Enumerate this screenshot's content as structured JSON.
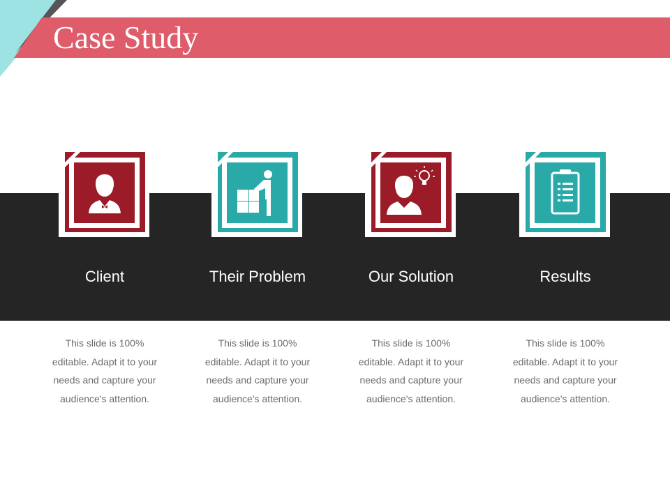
{
  "title": "Case Study",
  "colors": {
    "banner": "#df5c6a",
    "corner": "#9ee3e3",
    "band": "#252525",
    "red": "#9b1c28",
    "teal": "#2aa9a9"
  },
  "cards": [
    {
      "label": "Client",
      "icon": "businessman-icon",
      "color": "#9b1c28",
      "text": "This slide is 100% editable. Adapt it to your needs and capture your audience's attention."
    },
    {
      "label": "Their Problem",
      "icon": "puzzle-person-icon",
      "color": "#2aa9a9",
      "text": "This slide is 100% editable. Adapt it to your needs and capture your audience's attention."
    },
    {
      "label": "Our Solution",
      "icon": "businessman-lightbulb-icon",
      "color": "#9b1c28",
      "text": "This slide is 100% editable. Adapt it to your needs and capture your audience's attention."
    },
    {
      "label": "Results",
      "icon": "clipboard-checklist-icon",
      "color": "#2aa9a9",
      "text": "This slide is 100% editable. Adapt it to your needs and capture your audience's attention."
    }
  ]
}
